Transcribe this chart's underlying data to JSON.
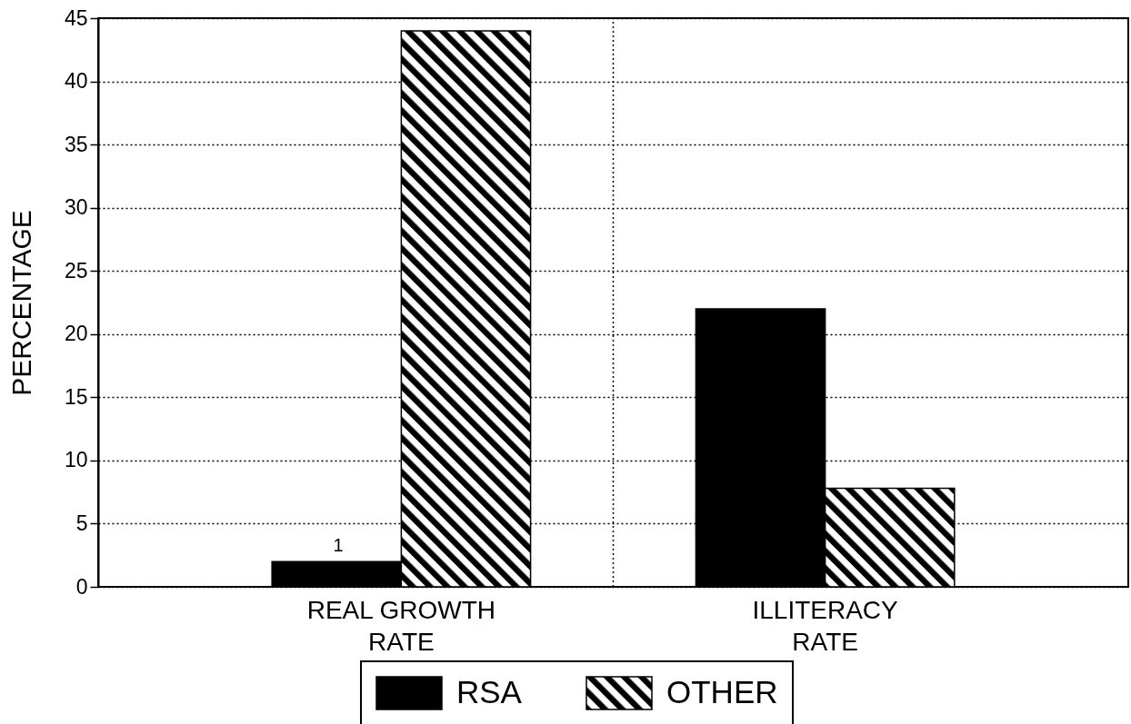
{
  "chart_data": {
    "type": "bar",
    "ylabel": "PERCENTAGE",
    "categories": [
      "REAL GROWTH RATE",
      "ILLITERACY RATE"
    ],
    "series": [
      {
        "name": "RSA",
        "color": "#000000",
        "values": [
          2,
          22
        ]
      },
      {
        "name": "OTHER",
        "color": "#000000",
        "values": [
          44,
          7.8
        ]
      }
    ],
    "ylim": [
      0,
      45
    ],
    "yticks": [
      0,
      5,
      10,
      15,
      20,
      25,
      30,
      35,
      40,
      45
    ],
    "grid": true,
    "legend": "bottom",
    "annotations": [
      "1"
    ]
  }
}
